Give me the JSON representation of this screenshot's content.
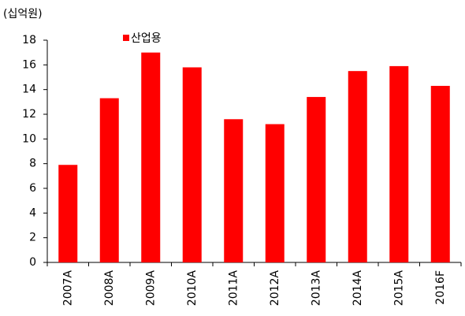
{
  "chart_data": {
    "type": "bar",
    "unit_label": "(십억원)",
    "categories": [
      "2007A",
      "2008A",
      "2009A",
      "2010A",
      "2011A",
      "2012A",
      "2013A",
      "2014A",
      "2015A",
      "2016F"
    ],
    "series": [
      {
        "name": "산업용",
        "color": "#ff0000",
        "values": [
          7.9,
          13.3,
          17.0,
          15.8,
          11.6,
          11.2,
          13.4,
          15.5,
          15.9,
          14.3
        ]
      }
    ],
    "ylim": [
      0,
      18
    ],
    "yticks": [
      0,
      2,
      4,
      6,
      8,
      10,
      12,
      14,
      16,
      18
    ],
    "grid": false,
    "legend": "top"
  }
}
